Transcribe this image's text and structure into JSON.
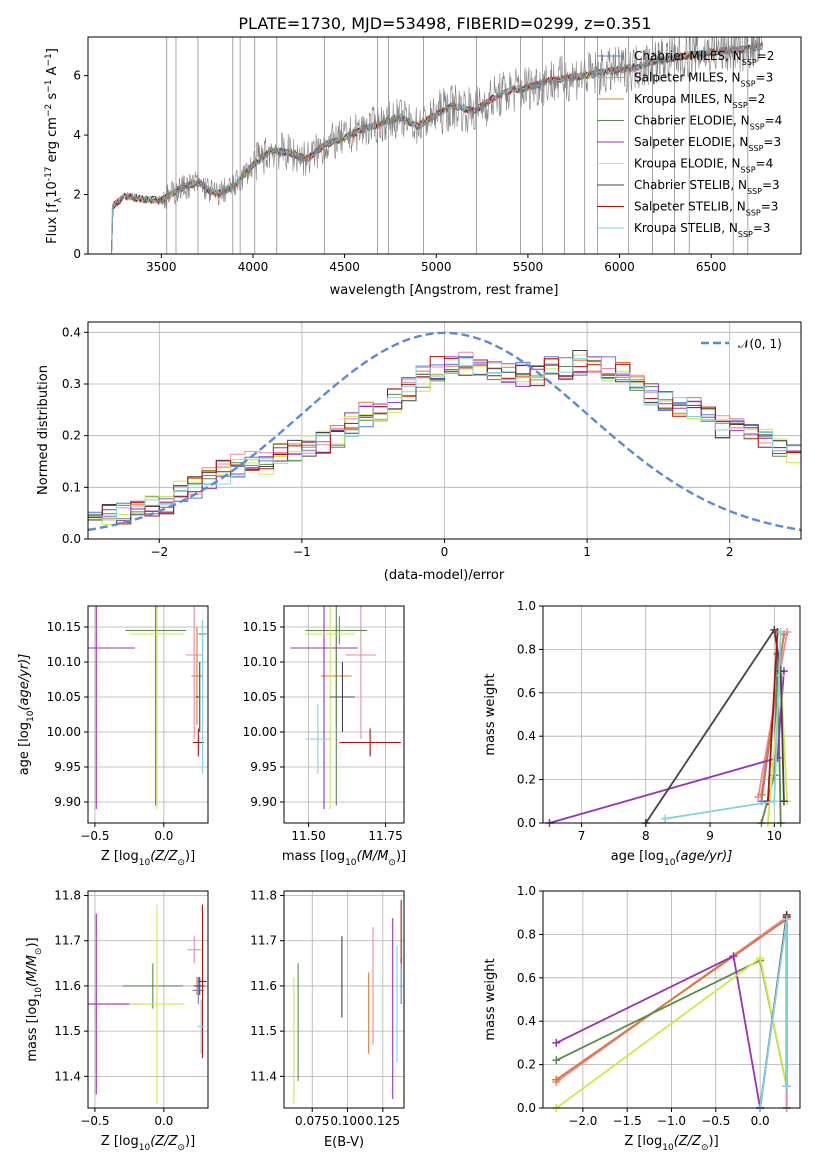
{
  "title": "PLATE=1730, MJD=53498, FIBERID=0299, z=0.351",
  "colors": {
    "Chabrier MILES": "#5a7fd6",
    "Salpeter MILES": "#e88ca8",
    "Kroupa MILES": "#e07a2e",
    "Chabrier ELODIE": "#5b8a52",
    "Salpeter ELODIE": "#9b30b8",
    "Kroupa ELODIE": "#d2e84a",
    "Chabrier STELIB": "#444444",
    "Salpeter STELIB": "#b01010",
    "Kroupa STELIB": "#7fd6e0",
    "data": "#808080",
    "gaussian": "#5b8bd6"
  },
  "legend_labels": {
    "l1": "Chabrier MILES, N",
    "l2": "Salpeter MILES, N",
    "l3": "Kroupa MILES, N",
    "l4": "Chabrier ELODIE, N",
    "l5": "Salpeter ELODIE, N",
    "l6": "Kroupa ELODIE, N",
    "l7": "Chabrier STELIB, N",
    "l8": "Salpeter STELIB, N",
    "l9": "Kroupa STELIB, N",
    "sub": "SSP",
    "n1": "=2",
    "n2": "=3",
    "n3": "=2",
    "n4": "=4",
    "n5": "=3",
    "n6": "=4",
    "n7": "=3",
    "n8": "=3",
    "n9": "=3"
  },
  "chart_data": [
    {
      "type": "line",
      "name": "spectrum",
      "xlabel": "wavelength [Angstrom, rest frame]",
      "ylabel_main": "Flux [f",
      "ylabel_sub": "λ",
      "ylabel_rest": "10",
      "ylabel_exp": "-17",
      "ylabel_units": "erg cm",
      "ylabel_units2": " s",
      "ylabel_units3": " A",
      "xlim": [
        3100,
        6990
      ],
      "ylim": [
        0,
        7.3
      ],
      "xticks": [
        3500,
        4000,
        4500,
        5000,
        5500,
        6000,
        6500
      ],
      "yticks": [
        0,
        2,
        4,
        6
      ],
      "xtick_labels": [
        "3500",
        "4000",
        "4500",
        "5000",
        "5500",
        "6000",
        "6500"
      ],
      "ytick_labels": [
        "0",
        "2",
        "4",
        "6"
      ],
      "continuum": [
        [
          3220,
          0
        ],
        [
          3230,
          1.6
        ],
        [
          3300,
          1.95
        ],
        [
          3400,
          1.85
        ],
        [
          3500,
          1.8
        ],
        [
          3600,
          2.2
        ],
        [
          3700,
          2.4
        ],
        [
          3800,
          2.0
        ],
        [
          3900,
          2.3
        ],
        [
          4000,
          3.0
        ],
        [
          4100,
          3.5
        ],
        [
          4200,
          3.4
        ],
        [
          4300,
          3.2
        ],
        [
          4400,
          3.7
        ],
        [
          4500,
          3.9
        ],
        [
          4600,
          4.2
        ],
        [
          4700,
          4.4
        ],
        [
          4800,
          4.6
        ],
        [
          4900,
          4.3
        ],
        [
          5000,
          4.7
        ],
        [
          5100,
          5.0
        ],
        [
          5200,
          4.8
        ],
        [
          5300,
          5.2
        ],
        [
          5400,
          5.5
        ],
        [
          5500,
          5.6
        ],
        [
          5600,
          5.8
        ],
        [
          5700,
          5.9
        ],
        [
          5800,
          6.0
        ],
        [
          5900,
          6.1
        ],
        [
          6000,
          6.2
        ],
        [
          6100,
          6.3
        ],
        [
          6200,
          6.5
        ],
        [
          6300,
          6.6
        ],
        [
          6400,
          6.7
        ],
        [
          6500,
          6.8
        ],
        [
          6600,
          6.85
        ],
        [
          6700,
          6.9
        ],
        [
          6780,
          7.0
        ]
      ]
    },
    {
      "type": "line",
      "name": "residual distribution",
      "xlabel": "(data-model)/error",
      "ylabel": "Normed distribution",
      "xlim": [
        -2.5,
        2.5
      ],
      "ylim": [
        0,
        0.42
      ],
      "xticks": [
        -2,
        -1,
        0,
        1,
        2
      ],
      "yticks": [
        0.0,
        0.1,
        0.2,
        0.3,
        0.4
      ],
      "xtick_labels": [
        "−2",
        "−1",
        "0",
        "1",
        "2"
      ],
      "ytick_labels": [
        "0.0",
        "0.1",
        "0.2",
        "0.3",
        "0.4"
      ],
      "legend": "𝒩(0, 1)",
      "bins_x0": -2.5,
      "bin_width": 0.1,
      "hist_base": [
        0.04,
        0.045,
        0.05,
        0.05,
        0.06,
        0.07,
        0.09,
        0.1,
        0.12,
        0.13,
        0.14,
        0.15,
        0.15,
        0.16,
        0.17,
        0.18,
        0.19,
        0.2,
        0.22,
        0.24,
        0.25,
        0.27,
        0.29,
        0.31,
        0.33,
        0.34,
        0.34,
        0.33,
        0.32,
        0.32,
        0.32,
        0.32,
        0.33,
        0.33,
        0.34,
        0.34,
        0.33,
        0.32,
        0.3,
        0.28,
        0.27,
        0.26,
        0.25,
        0.24,
        0.22,
        0.21,
        0.2,
        0.19,
        0.18,
        0.16,
        0.15,
        0.14,
        0.13,
        0.12,
        0.12,
        0.11,
        0.1,
        0.09,
        0.08,
        0.07,
        0.07,
        0.06,
        0.06,
        0.05,
        0.05,
        0.05,
        0.05,
        0.05,
        0.05,
        0.05,
        0.05,
        0.05,
        0.05,
        0.05
      ]
    },
    {
      "type": "scatter",
      "name": "age vs Z errorbars",
      "xlabel": "Z [log",
      "xlabel_sub": "10",
      "xlabel_rest": "(Z/Z",
      "xlabel_sun": "⊙",
      "xlabel_end": ")]",
      "ylabel": "age  [log",
      "ylabel_sub": "10",
      "ylabel_rest": "(age/yr)]",
      "xlim": [
        -0.55,
        0.32
      ],
      "ylim": [
        9.87,
        10.18
      ],
      "xticks": [
        -0.5,
        0.0
      ],
      "xtick_labels": [
        "−0.5",
        "0.0"
      ],
      "yticks": [
        9.9,
        9.95,
        10.0,
        10.05,
        10.1,
        10.15
      ],
      "ytick_labels": [
        "9.90",
        "9.95",
        "10.00",
        "10.05",
        "10.10",
        "10.15"
      ],
      "points": [
        {
          "m": "Chabrier MILES",
          "x": 0.28,
          "y": 10.14,
          "xe": 0.03,
          "ye": 0.02
        },
        {
          "m": "Salpeter MILES",
          "x": 0.22,
          "y": 10.11,
          "xe": 0.06,
          "ye": 0.12
        },
        {
          "m": "Kroupa MILES",
          "x": 0.24,
          "y": 10.08,
          "xe": 0.04,
          "ye": 0.07
        },
        {
          "m": "Chabrier ELODIE",
          "x": -0.06,
          "y": 10.145,
          "xe": 0.22,
          "ye": 0.25
        },
        {
          "m": "Salpeter ELODIE",
          "x": -0.49,
          "y": 10.12,
          "xe": 0.28,
          "ye": 0.23
        },
        {
          "m": "Kroupa ELODIE",
          "x": -0.05,
          "y": 10.14,
          "xe": 0.2,
          "ye": 0.25
        },
        {
          "m": "Chabrier STELIB",
          "x": 0.26,
          "y": 10.05,
          "xe": 0.03,
          "ye": 0.05
        },
        {
          "m": "Salpeter STELIB",
          "x": 0.25,
          "y": 9.985,
          "xe": 0.04,
          "ye": 0.02
        },
        {
          "m": "Kroupa STELIB",
          "x": 0.28,
          "y": 10.05,
          "xe": 0.02,
          "ye": 0.11
        }
      ]
    },
    {
      "type": "scatter",
      "name": "age vs mass errorbars",
      "xlabel": "mass [log",
      "xlabel_sub": "10",
      "xlabel_rest": "(M/M",
      "xlabel_sun": "⊙",
      "xlabel_end": ")]",
      "xlim": [
        11.42,
        11.81
      ],
      "ylim": [
        9.87,
        10.18
      ],
      "xticks": [
        11.5,
        11.75
      ],
      "xtick_labels": [
        "11.50",
        "11.75"
      ],
      "yticks": [
        9.9,
        9.95,
        10.0,
        10.05,
        10.1,
        10.15
      ],
      "ytick_labels": [
        "9.90",
        "9.95",
        "10.00",
        "10.05",
        "10.10",
        "10.15"
      ],
      "points": [
        {
          "m": "Chabrier MILES",
          "x": 11.6,
          "y": 10.145,
          "xe": 0.05,
          "ye": 0.02
        },
        {
          "m": "Salpeter MILES",
          "x": 11.67,
          "y": 10.11,
          "xe": 0.05,
          "ye": 0.12
        },
        {
          "m": "Kroupa MILES",
          "x": 11.59,
          "y": 10.08,
          "xe": 0.05,
          "ye": 0.07
        },
        {
          "m": "Chabrier ELODIE",
          "x": 11.59,
          "y": 10.145,
          "xe": 0.1,
          "ye": 0.25
        },
        {
          "m": "Salpeter ELODIE",
          "x": 11.55,
          "y": 10.12,
          "xe": 0.11,
          "ye": 0.23
        },
        {
          "m": "Kroupa ELODIE",
          "x": 11.57,
          "y": 10.14,
          "xe": 0.08,
          "ye": 0.25
        },
        {
          "m": "Chabrier STELIB",
          "x": 11.61,
          "y": 10.05,
          "xe": 0.04,
          "ye": 0.05
        },
        {
          "m": "Salpeter STELIB",
          "x": 11.7,
          "y": 9.985,
          "xe": 0.1,
          "ye": 0.02
        },
        {
          "m": "Kroupa STELIB",
          "x": 11.53,
          "y": 9.99,
          "xe": 0.04,
          "ye": 0.05
        }
      ]
    },
    {
      "type": "line",
      "name": "mass weight vs age",
      "xlabel": "age  [log",
      "xlabel_sub": "10",
      "xlabel_rest": "(age/yr)]",
      "ylabel": "mass weight",
      "xlim": [
        6.4,
        10.4
      ],
      "ylim": [
        0,
        1.0
      ],
      "xticks": [
        7,
        8,
        9,
        10
      ],
      "xtick_labels": [
        "7",
        "8",
        "9",
        "10"
      ],
      "yticks": [
        0.0,
        0.2,
        0.4,
        0.6,
        0.8,
        1.0
      ],
      "ytick_labels": [
        "0.0",
        "0.2",
        "0.4",
        "0.6",
        "0.8",
        "1.0"
      ],
      "series": [
        {
          "m": "Chabrier MILES",
          "pts": [
            [
              9.8,
              0.1
            ],
            [
              10.15,
              0.87
            ]
          ]
        },
        {
          "m": "Salpeter MILES",
          "pts": [
            [
              9.75,
              0.12
            ],
            [
              10.2,
              0.88
            ]
          ]
        },
        {
          "m": "Kroupa MILES",
          "pts": [
            [
              9.8,
              0.13
            ],
            [
              10.15,
              0.87
            ]
          ]
        },
        {
          "m": "Chabrier ELODIE",
          "pts": [
            [
              9.8,
              0.0
            ],
            [
              10.0,
              0.22
            ],
            [
              10.05,
              0.78
            ],
            [
              10.1,
              0.0
            ]
          ]
        },
        {
          "m": "Salpeter ELODIE",
          "pts": [
            [
              6.5,
              0.0
            ],
            [
              10.05,
              0.3
            ],
            [
              10.15,
              0.7
            ]
          ]
        },
        {
          "m": "Kroupa ELODIE",
          "pts": [
            [
              9.9,
              0.0
            ],
            [
              10.1,
              0.68
            ],
            [
              10.2,
              0.1
            ]
          ]
        },
        {
          "m": "Chabrier STELIB",
          "pts": [
            [
              8.0,
              0.0
            ],
            [
              10.0,
              0.89
            ],
            [
              10.1,
              0.7
            ],
            [
              10.15,
              0.1
            ]
          ]
        },
        {
          "m": "Salpeter STELIB",
          "pts": [
            [
              9.9,
              0.1
            ],
            [
              10.05,
              0.88
            ]
          ]
        },
        {
          "m": "Kroupa STELIB",
          "pts": [
            [
              8.3,
              0.02
            ],
            [
              10.0,
              0.1
            ],
            [
              10.1,
              0.88
            ]
          ]
        }
      ]
    },
    {
      "type": "scatter",
      "name": "mass vs Z errorbars",
      "xlabel": "Z [log",
      "xlabel_sub": "10",
      "xlabel_rest": "(Z/Z",
      "xlabel_sun": "⊙",
      "xlabel_end": ")]",
      "ylabel": "mass [log",
      "ylabel_sub": "10",
      "ylabel_rest": "(M/M",
      "ylabel_sun": "⊙",
      "ylabel_end": ")]",
      "xlim": [
        -0.55,
        0.32
      ],
      "ylim": [
        11.33,
        11.81
      ],
      "xticks": [
        -0.5,
        0.0
      ],
      "xtick_labels": [
        "−0.5",
        "0.0"
      ],
      "yticks": [
        11.4,
        11.5,
        11.6,
        11.7,
        11.8
      ],
      "ytick_labels": [
        "11.4",
        "11.5",
        "11.6",
        "11.7",
        "11.8"
      ],
      "points": [
        {
          "m": "Chabrier MILES",
          "x": 0.25,
          "y": 11.59,
          "xe": 0.04,
          "ye": 0.03
        },
        {
          "m": "Salpeter MILES",
          "x": 0.22,
          "y": 11.68,
          "xe": 0.05,
          "ye": 0.03
        },
        {
          "m": "Kroupa MILES",
          "x": 0.24,
          "y": 11.6,
          "xe": 0.03,
          "ye": 0.02
        },
        {
          "m": "Chabrier ELODIE",
          "x": -0.08,
          "y": 11.6,
          "xe": 0.22,
          "ye": 0.05
        },
        {
          "m": "Salpeter ELODIE",
          "x": -0.49,
          "y": 11.56,
          "xe": 0.35,
          "ye": 0.2
        },
        {
          "m": "Kroupa ELODIE",
          "x": -0.05,
          "y": 11.56,
          "xe": 0.2,
          "ye": 0.22
        },
        {
          "m": "Chabrier STELIB",
          "x": 0.26,
          "y": 11.6,
          "xe": 0.04,
          "ye": 0.02
        },
        {
          "m": "Salpeter STELIB",
          "x": 0.28,
          "y": 11.61,
          "xe": 0.03,
          "ye": 0.17
        },
        {
          "m": "Kroupa STELIB",
          "x": 0.27,
          "y": 11.51,
          "xe": 0.03,
          "ye": 0.06
        }
      ]
    },
    {
      "type": "scatter",
      "name": "mass vs E(B-V) errorbars",
      "xlabel": "E(B-V)",
      "xlim": [
        0.055,
        0.14
      ],
      "ylim": [
        11.33,
        11.81
      ],
      "xticks": [
        0.075,
        0.1,
        0.125
      ],
      "xtick_labels": [
        "0.075",
        "0.100",
        "0.125"
      ],
      "yticks": [
        11.4,
        11.5,
        11.6,
        11.7,
        11.8
      ],
      "ytick_labels": [
        "11.4",
        "11.5",
        "11.6",
        "11.7",
        "11.8"
      ],
      "points": [
        {
          "m": "Chabrier MILES",
          "x": 0.138,
          "y": 11.61,
          "xe": 0.0,
          "ye": 0.05
        },
        {
          "m": "Salpeter MILES",
          "x": 0.118,
          "y": 11.6,
          "xe": 0.0,
          "ye": 0.13
        },
        {
          "m": "Kroupa MILES",
          "x": 0.115,
          "y": 11.54,
          "xe": 0.0,
          "ye": 0.09
        },
        {
          "m": "Chabrier ELODIE",
          "x": 0.065,
          "y": 11.52,
          "xe": 0.0,
          "ye": 0.13
        },
        {
          "m": "Salpeter ELODIE",
          "x": 0.132,
          "y": 11.55,
          "xe": 0.0,
          "ye": 0.2
        },
        {
          "m": "Kroupa ELODIE",
          "x": 0.062,
          "y": 11.48,
          "xe": 0.0,
          "ye": 0.14
        },
        {
          "m": "Chabrier STELIB",
          "x": 0.096,
          "y": 11.62,
          "xe": 0.0,
          "ye": 0.09
        },
        {
          "m": "Salpeter STELIB",
          "x": 0.138,
          "y": 11.72,
          "xe": 0.0,
          "ye": 0.07
        },
        {
          "m": "Kroupa STELIB",
          "x": 0.135,
          "y": 11.56,
          "xe": 0.0,
          "ye": 0.13
        }
      ]
    },
    {
      "type": "line",
      "name": "mass weight vs Z",
      "xlabel": "Z [log",
      "xlabel_sub": "10",
      "xlabel_rest": "(Z/Z",
      "xlabel_sun": "⊙",
      "xlabel_end": ")]",
      "ylabel": "mass weight",
      "xlim": [
        -2.45,
        0.45
      ],
      "ylim": [
        0,
        1.0
      ],
      "xticks": [
        -2.0,
        -1.5,
        -1.0,
        -0.5,
        0.0
      ],
      "xtick_labels": [
        "−2.0",
        "−1.5",
        "−1.0",
        "−0.5",
        "0.0"
      ],
      "yticks": [
        0.0,
        0.2,
        0.4,
        0.6,
        0.8,
        1.0
      ],
      "ytick_labels": [
        "0.0",
        "0.2",
        "0.4",
        "0.6",
        "0.8",
        "1.0"
      ],
      "series": [
        {
          "m": "Chabrier MILES",
          "pts": [
            [
              -2.3,
              0.13
            ],
            [
              0.3,
              0.87
            ],
            [
              0.3,
              0.0
            ]
          ]
        },
        {
          "m": "Salpeter MILES",
          "pts": [
            [
              -2.3,
              0.12
            ],
            [
              0.3,
              0.88
            ],
            [
              0.3,
              0.0
            ]
          ]
        },
        {
          "m": "Kroupa MILES",
          "pts": [
            [
              -2.3,
              0.13
            ],
            [
              0.3,
              0.87
            ]
          ]
        },
        {
          "m": "Chabrier ELODIE",
          "pts": [
            [
              -2.3,
              0.22
            ],
            [
              0.0,
              0.68
            ],
            [
              0.3,
              0.1
            ]
          ]
        },
        {
          "m": "Salpeter ELODIE",
          "pts": [
            [
              -2.3,
              0.3
            ],
            [
              -0.3,
              0.7
            ],
            [
              0.0,
              0.0
            ]
          ]
        },
        {
          "m": "Kroupa ELODIE",
          "pts": [
            [
              -2.3,
              0.0
            ],
            [
              0.0,
              0.69
            ],
            [
              0.3,
              0.1
            ]
          ]
        },
        {
          "m": "Chabrier STELIB",
          "pts": [
            [
              0.0,
              0.0
            ],
            [
              0.3,
              0.89
            ],
            [
              0.3,
              0.1
            ]
          ]
        },
        {
          "m": "Salpeter STELIB",
          "pts": [
            [
              0.0,
              0.0
            ],
            [
              0.3,
              0.88
            ],
            [
              0.3,
              0.1
            ]
          ]
        },
        {
          "m": "Kroupa STELIB",
          "pts": [
            [
              0.0,
              0.0
            ],
            [
              0.3,
              0.87
            ],
            [
              0.3,
              0.1
            ]
          ]
        }
      ]
    }
  ]
}
